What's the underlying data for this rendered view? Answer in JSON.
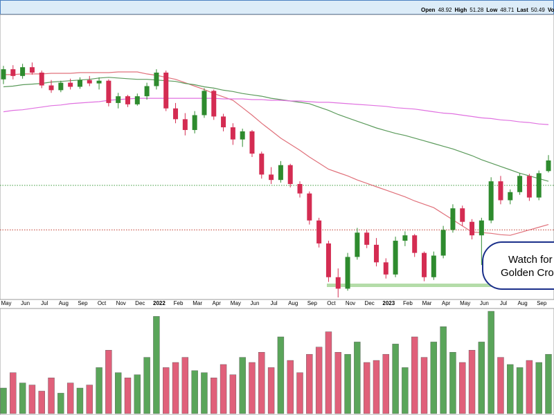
{
  "header": {
    "items": [
      {
        "label": "Open",
        "value": 48.92
      },
      {
        "label": "High",
        "value": 51.28
      },
      {
        "label": "Low",
        "value": 48.71
      },
      {
        "label": "Last",
        "value": 50.49
      }
    ],
    "trail": "Volume"
  },
  "chart_data": {
    "type": "candlestick",
    "categories": [
      "May",
      null,
      "Jun",
      null,
      "Jul",
      null,
      "Aug",
      null,
      "Sep",
      null,
      "Oct",
      null,
      "Nov",
      null,
      "Dec",
      null,
      "2022",
      null,
      "Feb",
      null,
      "Mar",
      null,
      "Apr",
      null,
      "May",
      null,
      "Jun",
      null,
      "Jul",
      null,
      "Aug",
      null,
      "Sep",
      null,
      "Oct",
      null,
      "Nov",
      null,
      "Dec",
      null,
      "2023",
      null,
      "Feb",
      null,
      "Mar",
      null,
      "Apr",
      null,
      "May",
      null,
      "Jun",
      null,
      "Jul",
      null,
      "Aug",
      null,
      "Sep",
      null
    ],
    "open": [
      62.5,
      64.0,
      63.0,
      64.3,
      63.5,
      61.6,
      60.9,
      62.0,
      61.4,
      62.4,
      61.9,
      62.3,
      59.0,
      60.0,
      58.8,
      60.0,
      61.5,
      63.5,
      58.2,
      56.6,
      55.0,
      57.2,
      60.8,
      57.0,
      55.4,
      53.6,
      54.8,
      51.5,
      48.4,
      47.6,
      49.8,
      47.0,
      45.6,
      41.6,
      38.2,
      33.2,
      31.5,
      36.2,
      39.8,
      38.0,
      35.4,
      33.6,
      38.6,
      39.4,
      36.8,
      33.2,
      36.4,
      40.2,
      43.4,
      41.4,
      39.4,
      41.6,
      47.4,
      44.6,
      45.8,
      48.2,
      45.0,
      48.92
    ],
    "high": [
      64.5,
      64.6,
      64.8,
      65.0,
      63.8,
      62.4,
      62.3,
      62.6,
      62.8,
      63.0,
      62.8,
      62.5,
      60.5,
      60.2,
      60.4,
      62.0,
      64.0,
      63.8,
      59.0,
      57.5,
      57.8,
      61.2,
      61.0,
      57.4,
      56.0,
      55.2,
      55.0,
      51.8,
      49.5,
      50.4,
      50.0,
      47.4,
      45.9,
      42.0,
      38.6,
      34.5,
      36.8,
      40.5,
      40.2,
      39.0,
      36.0,
      39.2,
      40.0,
      39.6,
      37.0,
      37.0,
      40.8,
      44.0,
      43.8,
      41.8,
      42.0,
      48.0,
      48.2,
      46.2,
      48.6,
      48.5,
      49.0,
      51.28
    ],
    "low": [
      61.8,
      62.5,
      62.6,
      63.2,
      61.2,
      60.5,
      60.6,
      61.0,
      61.1,
      61.5,
      61.0,
      58.5,
      58.2,
      58.4,
      58.6,
      59.5,
      61.0,
      57.8,
      56.0,
      54.2,
      54.5,
      56.8,
      56.5,
      54.8,
      52.8,
      52.5,
      51.0,
      47.8,
      47.0,
      47.2,
      46.5,
      45.0,
      41.0,
      37.6,
      32.5,
      30.2,
      31.2,
      35.8,
      37.5,
      34.8,
      33.0,
      33.2,
      37.8,
      36.2,
      32.6,
      32.8,
      36.0,
      39.8,
      40.8,
      38.8,
      35.0,
      41.2,
      44.0,
      44.0,
      45.4,
      44.5,
      44.6,
      48.71
    ],
    "close": [
      64.0,
      63.0,
      64.3,
      63.5,
      61.6,
      60.9,
      62.0,
      61.4,
      62.4,
      61.9,
      62.3,
      59.0,
      60.0,
      58.8,
      60.0,
      61.5,
      63.5,
      58.2,
      56.6,
      55.0,
      57.2,
      60.8,
      57.0,
      55.4,
      53.6,
      54.8,
      51.5,
      48.4,
      47.6,
      49.8,
      47.0,
      45.6,
      41.6,
      38.2,
      33.2,
      31.5,
      36.2,
      39.8,
      38.0,
      35.4,
      33.6,
      38.6,
      39.4,
      36.8,
      33.2,
      36.4,
      40.2,
      43.4,
      41.4,
      39.4,
      41.6,
      47.4,
      44.6,
      45.8,
      48.2,
      45.0,
      48.6,
      50.49
    ],
    "up_color": "#2e8b2e",
    "down_color": "#d42c52",
    "ylim": [
      30,
      72
    ],
    "series": [
      {
        "color": "#e0707a",
        "values": [
          63.2,
          63.2,
          63.3,
          63.3,
          63.3,
          63.4,
          63.4,
          63.4,
          63.5,
          63.5,
          63.5,
          63.5,
          63.6,
          63.6,
          63.6,
          63.3,
          63.1,
          62.8,
          62.5,
          62.0,
          61.5,
          61.0,
          60.4,
          59.9,
          59.4,
          58.3,
          57.2,
          56.0,
          54.9,
          53.8,
          52.9,
          52.0,
          51.0,
          50.1,
          49.2,
          48.7,
          48.2,
          47.6,
          47.1,
          46.6,
          46.1,
          45.6,
          45.1,
          44.5,
          44.0,
          43.5,
          42.6,
          41.7,
          40.8,
          39.9,
          39.8,
          39.7,
          39.5,
          39.4,
          39.8,
          40.2,
          40.6,
          41.0
        ]
      },
      {
        "color": "#5a9a5a",
        "values": [
          61.4,
          61.5,
          61.7,
          61.8,
          61.9,
          62.1,
          62.2,
          62.3,
          62.4,
          62.5,
          62.7,
          62.8,
          62.7,
          62.6,
          62.5,
          62.5,
          62.4,
          62.3,
          62.2,
          61.9,
          61.7,
          61.4,
          61.2,
          60.9,
          60.7,
          60.4,
          60.2,
          60.0,
          59.7,
          59.5,
          59.3,
          59.1,
          58.9,
          58.4,
          57.9,
          57.3,
          56.8,
          56.3,
          55.8,
          55.3,
          54.9,
          54.5,
          54.2,
          53.8,
          53.4,
          53.0,
          52.6,
          52.2,
          51.7,
          51.2,
          50.6,
          50.1,
          49.6,
          49.1,
          48.6,
          48.2,
          47.8,
          47.4
        ]
      },
      {
        "color": "#e070e0",
        "values": [
          57.7,
          57.9,
          58.0,
          58.2,
          58.4,
          58.6,
          58.7,
          58.9,
          59.0,
          59.1,
          59.2,
          59.4,
          59.5,
          59.6,
          59.7,
          59.7,
          59.7,
          59.7,
          59.7,
          59.7,
          59.7,
          59.7,
          59.7,
          59.6,
          59.6,
          59.6,
          59.5,
          59.5,
          59.4,
          59.4,
          59.3,
          59.3,
          59.2,
          59.1,
          59.1,
          59.0,
          58.9,
          58.8,
          58.7,
          58.6,
          58.5,
          58.3,
          58.2,
          58.1,
          57.9,
          57.7,
          57.5,
          57.4,
          57.2,
          57.0,
          56.8,
          56.7,
          56.5,
          56.4,
          56.2,
          56.1,
          55.9,
          55.8
        ]
      }
    ],
    "levels": [
      {
        "value": 46.8,
        "color": "#3a9a3a"
      },
      {
        "value": 40.2,
        "color": "#c0392b"
      }
    ],
    "support": {
      "value": 32.0,
      "color": "#b4dca8"
    },
    "volume": {
      "ylim": [
        0,
        100
      ],
      "up_color": "#5aa55a",
      "down_color": "#e0607a",
      "values": [
        25,
        40,
        30,
        28,
        22,
        35,
        20,
        30,
        25,
        28,
        45,
        62,
        40,
        35,
        38,
        55,
        95,
        45,
        50,
        55,
        42,
        40,
        35,
        48,
        38,
        55,
        50,
        60,
        45,
        75,
        52,
        40,
        58,
        65,
        80,
        60,
        58,
        70,
        50,
        52,
        58,
        68,
        45,
        75,
        55,
        70,
        85,
        60,
        50,
        62,
        70,
        100,
        55,
        48,
        45,
        52,
        50,
        58
      ]
    },
    "annotation": {
      "lines": [
        "Watch for",
        "Golden Cro"
      ]
    }
  }
}
